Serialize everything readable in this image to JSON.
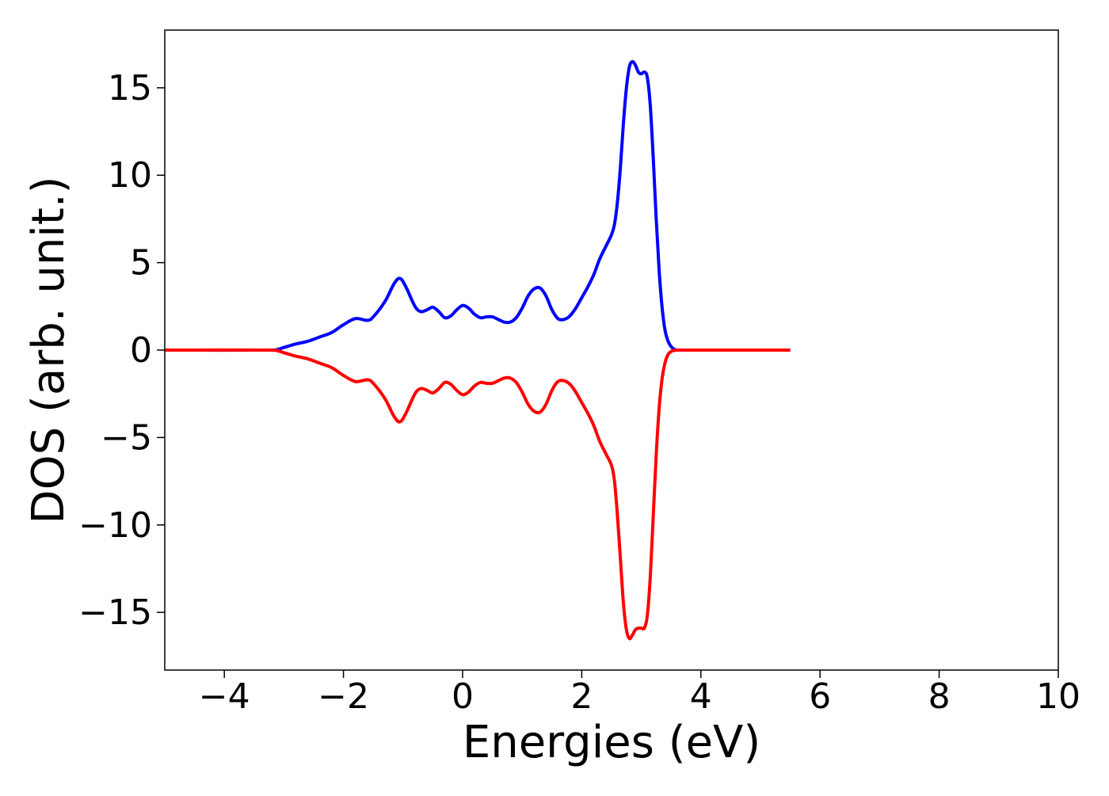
{
  "chart_data": {
    "type": "line",
    "title": "",
    "xlabel": "Energies (eV)",
    "ylabel": "DOS (arb. unit.)",
    "xlim": [
      -5,
      10
    ],
    "ylim": [
      -18.3,
      18.3
    ],
    "x_ticks": [
      -4,
      -2,
      0,
      2,
      4,
      6,
      8,
      10
    ],
    "y_ticks": [
      -15,
      -10,
      -5,
      0,
      5,
      10,
      15
    ],
    "x_tick_labels": [
      "−4",
      "−2",
      "0",
      "2",
      "4",
      "6",
      "8",
      "10"
    ],
    "y_tick_labels": [
      "−15",
      "−10",
      "−5",
      "0",
      "5",
      "10",
      "15"
    ],
    "grid": false,
    "legend": "none",
    "series": [
      {
        "color": "#0000ff",
        "x": [
          -5.0,
          -3.3,
          -3.1,
          -3.0,
          -2.8,
          -2.6,
          -2.4,
          -2.2,
          -2.0,
          -1.8,
          -1.6,
          -1.5,
          -1.3,
          -1.15,
          -1.05,
          -0.95,
          -0.8,
          -0.7,
          -0.6,
          -0.5,
          -0.4,
          -0.3,
          -0.2,
          -0.1,
          0.0,
          0.1,
          0.2,
          0.3,
          0.4,
          0.5,
          0.6,
          0.7,
          0.8,
          0.9,
          1.0,
          1.1,
          1.2,
          1.3,
          1.4,
          1.5,
          1.6,
          1.7,
          1.8,
          1.9,
          2.0,
          2.1,
          2.2,
          2.3,
          2.4,
          2.5,
          2.55,
          2.6,
          2.65,
          2.7,
          2.75,
          2.8,
          2.85,
          2.9,
          2.95,
          3.0,
          3.05,
          3.1,
          3.15,
          3.2,
          3.25,
          3.3,
          3.35,
          3.4,
          3.45,
          3.5,
          3.55,
          3.6,
          3.65,
          3.7,
          3.75,
          3.8,
          3.9,
          4.0,
          5.5
        ],
        "y": [
          0,
          0,
          0.05,
          0.15,
          0.35,
          0.5,
          0.75,
          1.0,
          1.45,
          1.8,
          1.7,
          1.9,
          2.8,
          3.8,
          4.1,
          3.6,
          2.5,
          2.2,
          2.3,
          2.45,
          2.2,
          1.85,
          1.95,
          2.3,
          2.55,
          2.4,
          2.05,
          1.85,
          1.9,
          1.9,
          1.75,
          1.6,
          1.6,
          1.85,
          2.4,
          3.1,
          3.5,
          3.55,
          3.1,
          2.3,
          1.8,
          1.75,
          1.95,
          2.4,
          3.0,
          3.6,
          4.3,
          5.2,
          5.9,
          6.6,
          7.2,
          8.5,
          10.5,
          13.0,
          15.0,
          16.2,
          16.5,
          16.3,
          15.9,
          15.8,
          15.9,
          15.6,
          14.0,
          11.0,
          7.5,
          4.5,
          2.4,
          1.1,
          0.5,
          0.2,
          0.05,
          0,
          0,
          0,
          0,
          0,
          0,
          0,
          0
        ]
      },
      {
        "color": "#ff0000",
        "x": [
          -5.0,
          -3.3,
          -3.1,
          -3.0,
          -2.8,
          -2.6,
          -2.4,
          -2.2,
          -2.0,
          -1.8,
          -1.6,
          -1.5,
          -1.3,
          -1.15,
          -1.05,
          -0.95,
          -0.8,
          -0.7,
          -0.6,
          -0.5,
          -0.4,
          -0.3,
          -0.2,
          -0.1,
          0.0,
          0.1,
          0.2,
          0.3,
          0.4,
          0.5,
          0.6,
          0.7,
          0.8,
          0.9,
          1.0,
          1.1,
          1.2,
          1.3,
          1.4,
          1.5,
          1.6,
          1.7,
          1.8,
          1.9,
          2.0,
          2.1,
          2.2,
          2.3,
          2.4,
          2.5,
          2.55,
          2.6,
          2.65,
          2.7,
          2.75,
          2.8,
          2.85,
          2.9,
          2.95,
          3.0,
          3.05,
          3.1,
          3.15,
          3.2,
          3.25,
          3.3,
          3.35,
          3.4,
          3.45,
          3.5,
          3.55,
          3.6,
          3.65,
          3.7,
          3.75,
          3.8,
          3.9,
          4.0,
          5.5
        ],
        "y": [
          0,
          0,
          -0.05,
          -0.15,
          -0.35,
          -0.5,
          -0.75,
          -1.0,
          -1.45,
          -1.8,
          -1.7,
          -1.9,
          -2.8,
          -3.8,
          -4.1,
          -3.6,
          -2.5,
          -2.2,
          -2.3,
          -2.45,
          -2.2,
          -1.85,
          -1.95,
          -2.3,
          -2.55,
          -2.4,
          -2.05,
          -1.85,
          -1.9,
          -1.9,
          -1.75,
          -1.6,
          -1.6,
          -1.85,
          -2.4,
          -3.1,
          -3.5,
          -3.55,
          -3.1,
          -2.3,
          -1.8,
          -1.75,
          -1.95,
          -2.4,
          -3.0,
          -3.6,
          -4.3,
          -5.2,
          -5.9,
          -6.6,
          -7.5,
          -9.5,
          -12.0,
          -14.5,
          -16.0,
          -16.5,
          -16.3,
          -16.0,
          -15.9,
          -15.9,
          -15.9,
          -15.2,
          -13.0,
          -9.5,
          -6.0,
          -3.3,
          -1.6,
          -0.7,
          -0.25,
          -0.08,
          -0.02,
          0,
          0,
          0,
          0,
          0,
          0,
          0,
          0
        ]
      }
    ]
  }
}
